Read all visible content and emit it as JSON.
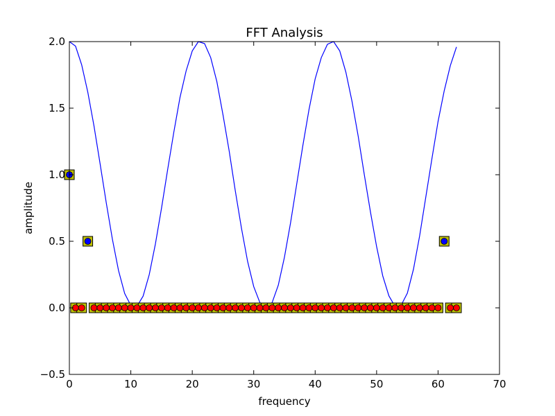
{
  "chart_data": {
    "type": "line",
    "title": "FFT Analysis",
    "xlabel": "frequency",
    "ylabel": "amplitude",
    "xlim": [
      0,
      70
    ],
    "ylim": [
      -0.5,
      2.0
    ],
    "xticks": [
      "0",
      "10",
      "20",
      "30",
      "40",
      "50",
      "60",
      "70"
    ],
    "yticks": [
      "−0.5",
      "0.0",
      "0.5",
      "1.0",
      "1.5",
      "2.0"
    ],
    "xtick_values": [
      0,
      10,
      20,
      30,
      40,
      50,
      60,
      70
    ],
    "ytick_values": [
      -0.5,
      0,
      0.5,
      1.0,
      1.5,
      2.0
    ],
    "grid": false,
    "series": [
      {
        "style": "line",
        "color": "#0000ff",
        "x": [
          0,
          1,
          2,
          3,
          4,
          5,
          6,
          7,
          8,
          9,
          10,
          11,
          12,
          13,
          14,
          15,
          16,
          17,
          18,
          19,
          20,
          21,
          22,
          23,
          24,
          25,
          26,
          27,
          28,
          29,
          30,
          31,
          32,
          33,
          34,
          35,
          36,
          37,
          38,
          39,
          40,
          41,
          42,
          43,
          44,
          45,
          46,
          47,
          48,
          49,
          50,
          51,
          52,
          53,
          54,
          55,
          56,
          57,
          58,
          59,
          60,
          61,
          62,
          63
        ],
        "y": [
          2.0,
          1.966,
          1.826,
          1.62,
          1.368,
          1.082,
          0.79,
          0.516,
          0.28,
          0.108,
          0.018,
          0.012,
          0.088,
          0.25,
          0.48,
          0.75,
          1.04,
          1.32,
          1.58,
          1.78,
          1.93,
          2.0,
          1.985,
          1.88,
          1.7,
          1.45,
          1.18,
          0.88,
          0.6,
          0.35,
          0.16,
          0.04,
          0.0,
          0.04,
          0.17,
          0.38,
          0.64,
          0.93,
          1.22,
          1.49,
          1.72,
          1.88,
          1.98,
          2.0,
          1.93,
          1.77,
          1.55,
          1.29,
          1.0,
          0.72,
          0.46,
          0.24,
          0.09,
          0.01,
          0.02,
          0.11,
          0.29,
          0.54,
          0.83,
          1.12,
          1.4,
          1.63,
          1.82,
          1.96
        ]
      },
      {
        "style": "square-marker",
        "color": "#bfbf00",
        "x": [
          0,
          1,
          2,
          3,
          4,
          5,
          6,
          7,
          8,
          9,
          10,
          11,
          12,
          13,
          14,
          15,
          16,
          17,
          18,
          19,
          20,
          21,
          22,
          23,
          24,
          25,
          26,
          27,
          28,
          29,
          30,
          31,
          32,
          33,
          34,
          35,
          36,
          37,
          38,
          39,
          40,
          41,
          42,
          43,
          44,
          45,
          46,
          47,
          48,
          49,
          50,
          51,
          52,
          53,
          54,
          55,
          56,
          57,
          58,
          59,
          60,
          61,
          62,
          63
        ],
        "y": [
          1.0,
          0,
          0,
          0.5,
          0,
          0,
          0,
          0,
          0,
          0,
          0,
          0,
          0,
          0,
          0,
          0,
          0,
          0,
          0,
          0,
          0,
          0,
          0,
          0,
          0,
          0,
          0,
          0,
          0,
          0,
          0,
          0,
          0,
          0,
          0,
          0,
          0,
          0,
          0,
          0,
          0,
          0,
          0,
          0,
          0,
          0,
          0,
          0,
          0,
          0,
          0,
          0,
          0,
          0,
          0,
          0,
          0,
          0,
          0,
          0,
          0,
          0.5,
          0,
          0
        ]
      },
      {
        "style": "circle-marker",
        "color": "#0000ff",
        "x": [
          0,
          3,
          61
        ],
        "y": [
          1.0,
          0.5,
          0.5
        ]
      },
      {
        "style": "circle-marker",
        "color": "#ff0000",
        "x": [
          1,
          2,
          4,
          5,
          6,
          7,
          8,
          9,
          10,
          11,
          12,
          13,
          14,
          15,
          16,
          17,
          18,
          19,
          20,
          21,
          22,
          23,
          24,
          25,
          26,
          27,
          28,
          29,
          30,
          31,
          32,
          33,
          34,
          35,
          36,
          37,
          38,
          39,
          40,
          41,
          42,
          43,
          44,
          45,
          46,
          47,
          48,
          49,
          50,
          51,
          52,
          53,
          54,
          55,
          56,
          57,
          58,
          59,
          60,
          62,
          63
        ],
        "y": [
          0,
          0,
          0,
          0,
          0,
          0,
          0,
          0,
          0,
          0,
          0,
          0,
          0,
          0,
          0,
          0,
          0,
          0,
          0,
          0,
          0,
          0,
          0,
          0,
          0,
          0,
          0,
          0,
          0,
          0,
          0,
          0,
          0,
          0,
          0,
          0,
          0,
          0,
          0,
          0,
          0,
          0,
          0,
          0,
          0,
          0,
          0,
          0,
          0,
          0,
          0,
          0,
          0,
          0,
          0,
          0,
          0,
          0,
          0,
          0,
          0
        ]
      }
    ]
  }
}
